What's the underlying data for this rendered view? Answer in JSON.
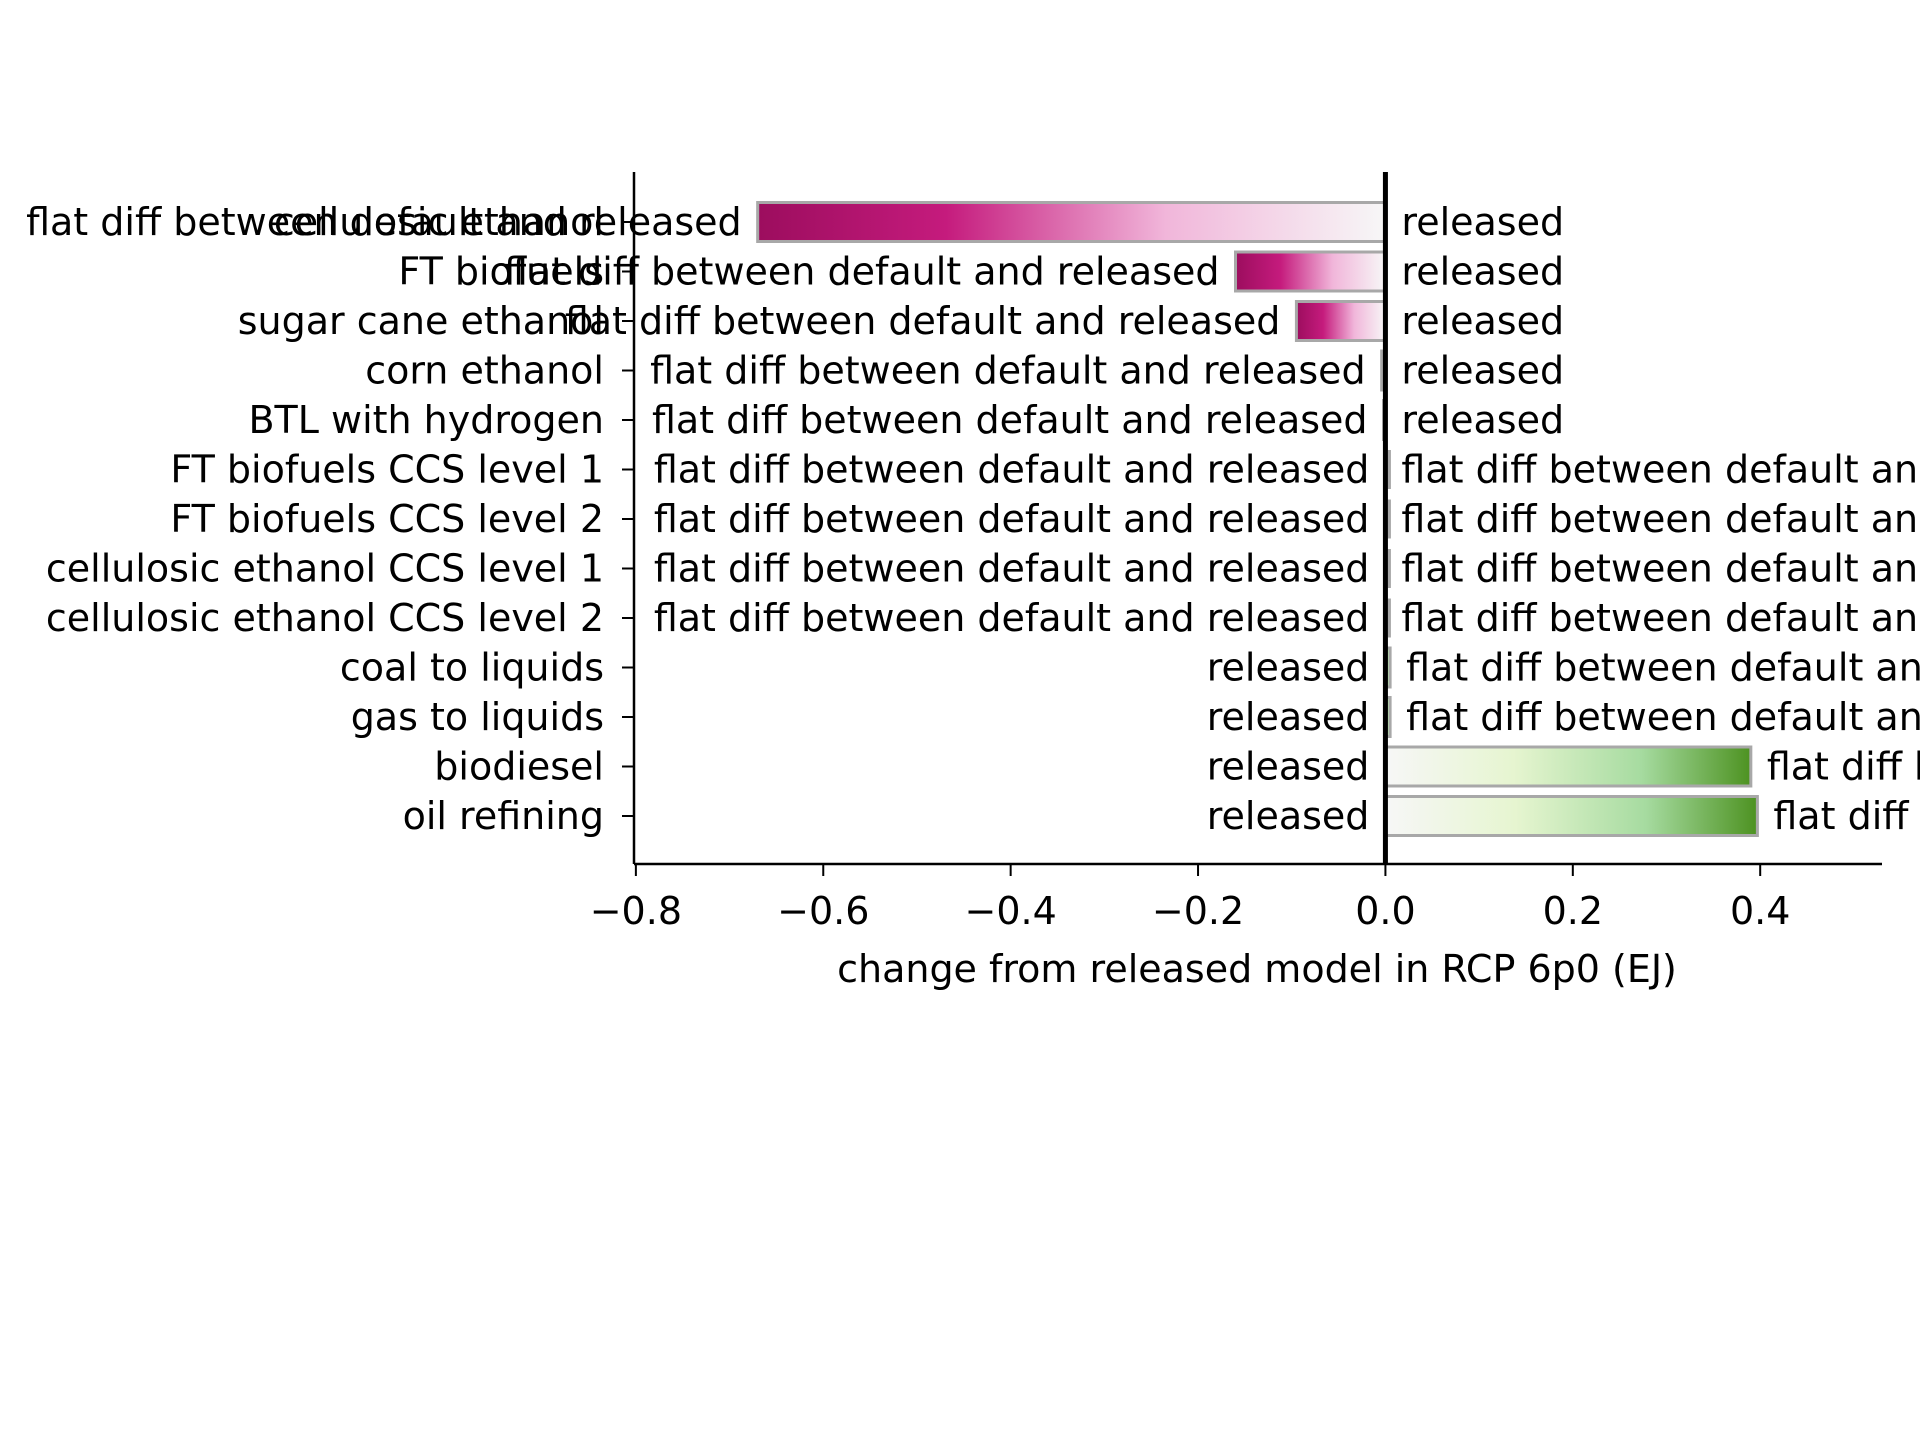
{
  "chart_data": {
    "type": "bar",
    "orientation": "horizontal",
    "xlabel": "change from released model in RCP 6p0 (EJ)",
    "ylabel": "",
    "xlim": [
      -0.802,
      0.53
    ],
    "xticks": [
      -0.8,
      -0.6,
      -0.4,
      -0.2,
      0.0,
      0.2,
      0.4
    ],
    "xtick_labels": [
      "−0.8",
      "−0.6",
      "−0.4",
      "−0.2",
      "0.0",
      "0.2",
      "0.4"
    ],
    "grid": false,
    "colors": {
      "negative_strong": "#9c0d5e",
      "negative_mid": "#c51b7d",
      "negative_light": "#f1b6da",
      "positive_light": "#e6f5d0",
      "positive_mid": "#a6dba0",
      "positive_strong": "#4d9221",
      "bar_edge": "#a8a8a8"
    },
    "categories": [
      "cellulosic ethanol",
      "FT biofuels",
      "sugar cane ethanol",
      "corn ethanol",
      "BTL with hydrogen",
      "FT biofuels CCS level 1",
      "FT biofuels CCS level 2",
      "cellulosic ethanol CCS level 1",
      "cellulosic ethanol CCS level 2",
      "coal to liquids",
      "gas to liquids",
      "biodiesel",
      "oil refining"
    ],
    "values": [
      -0.67,
      -0.16,
      -0.095,
      -0.004,
      -0.002,
      0.0,
      0.0,
      0.0,
      0.0,
      0.005,
      0.005,
      0.39,
      0.397
    ],
    "left_labels": [
      "flat diff between default and released",
      "flat diff between default and released",
      "flat diff between default and released",
      "flat diff between default and released",
      "flat diff between default and released",
      "flat diff between default and released",
      "flat diff between default and released",
      "flat diff between default and released",
      "flat diff between default and released",
      "released",
      "released",
      "released",
      "released"
    ],
    "right_labels": [
      "released",
      "released",
      "released",
      "released",
      "released",
      "flat diff between default and released",
      "flat diff between default and released",
      "flat diff between default and released",
      "flat diff between default and released",
      "flat diff between default and released",
      "flat diff between default and released",
      "flat diff between default and released",
      "flat diff between default and released"
    ]
  }
}
